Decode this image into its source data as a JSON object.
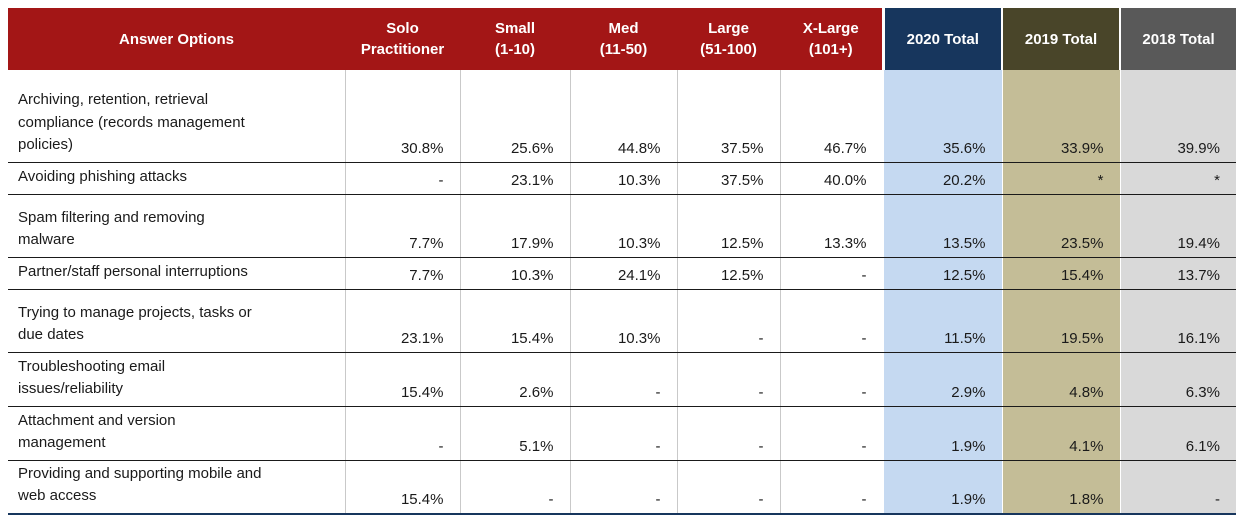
{
  "table": {
    "header": {
      "answer_options": "Answer Options",
      "group_columns": [
        {
          "label": "Solo\nPractitioner"
        },
        {
          "label": "Small\n(1-10)"
        },
        {
          "label": "Med\n(11-50)"
        },
        {
          "label": "Large\n(51-100)"
        },
        {
          "label": "X-Large\n(101+)"
        }
      ],
      "total_columns": [
        "2020 Total",
        "2019 Total",
        "2018 Total"
      ]
    },
    "rows": [
      {
        "option": "Archiving, retention, retrieval\ncompliance (records management\npolicies)",
        "values": [
          "30.8%",
          "25.6%",
          "44.8%",
          "37.5%",
          "46.7%",
          "35.6%",
          "33.9%",
          "39.9%"
        ]
      },
      {
        "option": "Avoiding phishing attacks",
        "values": [
          "-",
          "23.1%",
          "10.3%",
          "37.5%",
          "40.0%",
          "20.2%",
          "*",
          "*"
        ]
      },
      {
        "option": "Spam filtering and removing\nmalware",
        "values": [
          "7.7%",
          "17.9%",
          "10.3%",
          "12.5%",
          "13.3%",
          "13.5%",
          "23.5%",
          "19.4%"
        ]
      },
      {
        "option": "Partner/staff personal interruptions",
        "values": [
          "7.7%",
          "10.3%",
          "24.1%",
          "12.5%",
          "-",
          "12.5%",
          "15.4%",
          "13.7%"
        ]
      },
      {
        "option": "Trying to manage projects, tasks or\ndue dates",
        "values": [
          "23.1%",
          "15.4%",
          "10.3%",
          "-",
          "-",
          "11.5%",
          "19.5%",
          "16.1%"
        ]
      },
      {
        "option": "Troubleshooting email\nissues/reliability",
        "values": [
          "15.4%",
          "2.6%",
          "-",
          "-",
          "-",
          "2.9%",
          "4.8%",
          "6.3%"
        ]
      },
      {
        "option": "Attachment and version\nmanagement",
        "values": [
          "-",
          "5.1%",
          "-",
          "-",
          "-",
          "1.9%",
          "4.1%",
          "6.1%"
        ]
      },
      {
        "option": "Providing and supporting mobile and\nweb access",
        "values": [
          "15.4%",
          "-",
          "-",
          "-",
          "-",
          "1.9%",
          "1.8%",
          "-"
        ]
      }
    ]
  },
  "colors": {
    "header_red": "#A31616",
    "header_navy_2020": "#17365D",
    "header_olive_2019": "#494529",
    "header_gray_2018": "#595959",
    "fill_blue_2020": "#C5D9F1",
    "fill_tan_2019": "#C4BD97",
    "fill_gray_2018": "#D9D9D9",
    "row_border": "#1a1a1a",
    "header_text": "#ffffff",
    "body_text": "#1a1a1a"
  },
  "chart_data": {
    "type": "table",
    "title": "",
    "columns": [
      "Answer Options",
      "Solo Practitioner",
      "Small (1-10)",
      "Med (11-50)",
      "Large (51-100)",
      "X-Large (101+)",
      "2020 Total",
      "2019 Total",
      "2018 Total"
    ],
    "rows": [
      [
        "Archiving, retention, retrieval compliance (records management policies)",
        "30.8%",
        "25.6%",
        "44.8%",
        "37.5%",
        "46.7%",
        "35.6%",
        "33.9%",
        "39.9%"
      ],
      [
        "Avoiding phishing attacks",
        "-",
        "23.1%",
        "10.3%",
        "37.5%",
        "40.0%",
        "20.2%",
        "*",
        "*"
      ],
      [
        "Spam filtering and removing malware",
        "7.7%",
        "17.9%",
        "10.3%",
        "12.5%",
        "13.3%",
        "13.5%",
        "23.5%",
        "19.4%"
      ],
      [
        "Partner/staff personal interruptions",
        "7.7%",
        "10.3%",
        "24.1%",
        "12.5%",
        "-",
        "12.5%",
        "15.4%",
        "13.7%"
      ],
      [
        "Trying to manage projects, tasks or due dates",
        "23.1%",
        "15.4%",
        "10.3%",
        "-",
        "-",
        "11.5%",
        "19.5%",
        "16.1%"
      ],
      [
        "Troubleshooting email issues/reliability",
        "15.4%",
        "2.6%",
        "-",
        "-",
        "-",
        "2.9%",
        "4.8%",
        "6.3%"
      ],
      [
        "Attachment and version management",
        "-",
        "5.1%",
        "-",
        "-",
        "-",
        "1.9%",
        "4.1%",
        "6.1%"
      ],
      [
        "Providing and supporting mobile and web access",
        "15.4%",
        "-",
        "-",
        "-",
        "-",
        "1.9%",
        "1.8%",
        "-"
      ]
    ]
  }
}
